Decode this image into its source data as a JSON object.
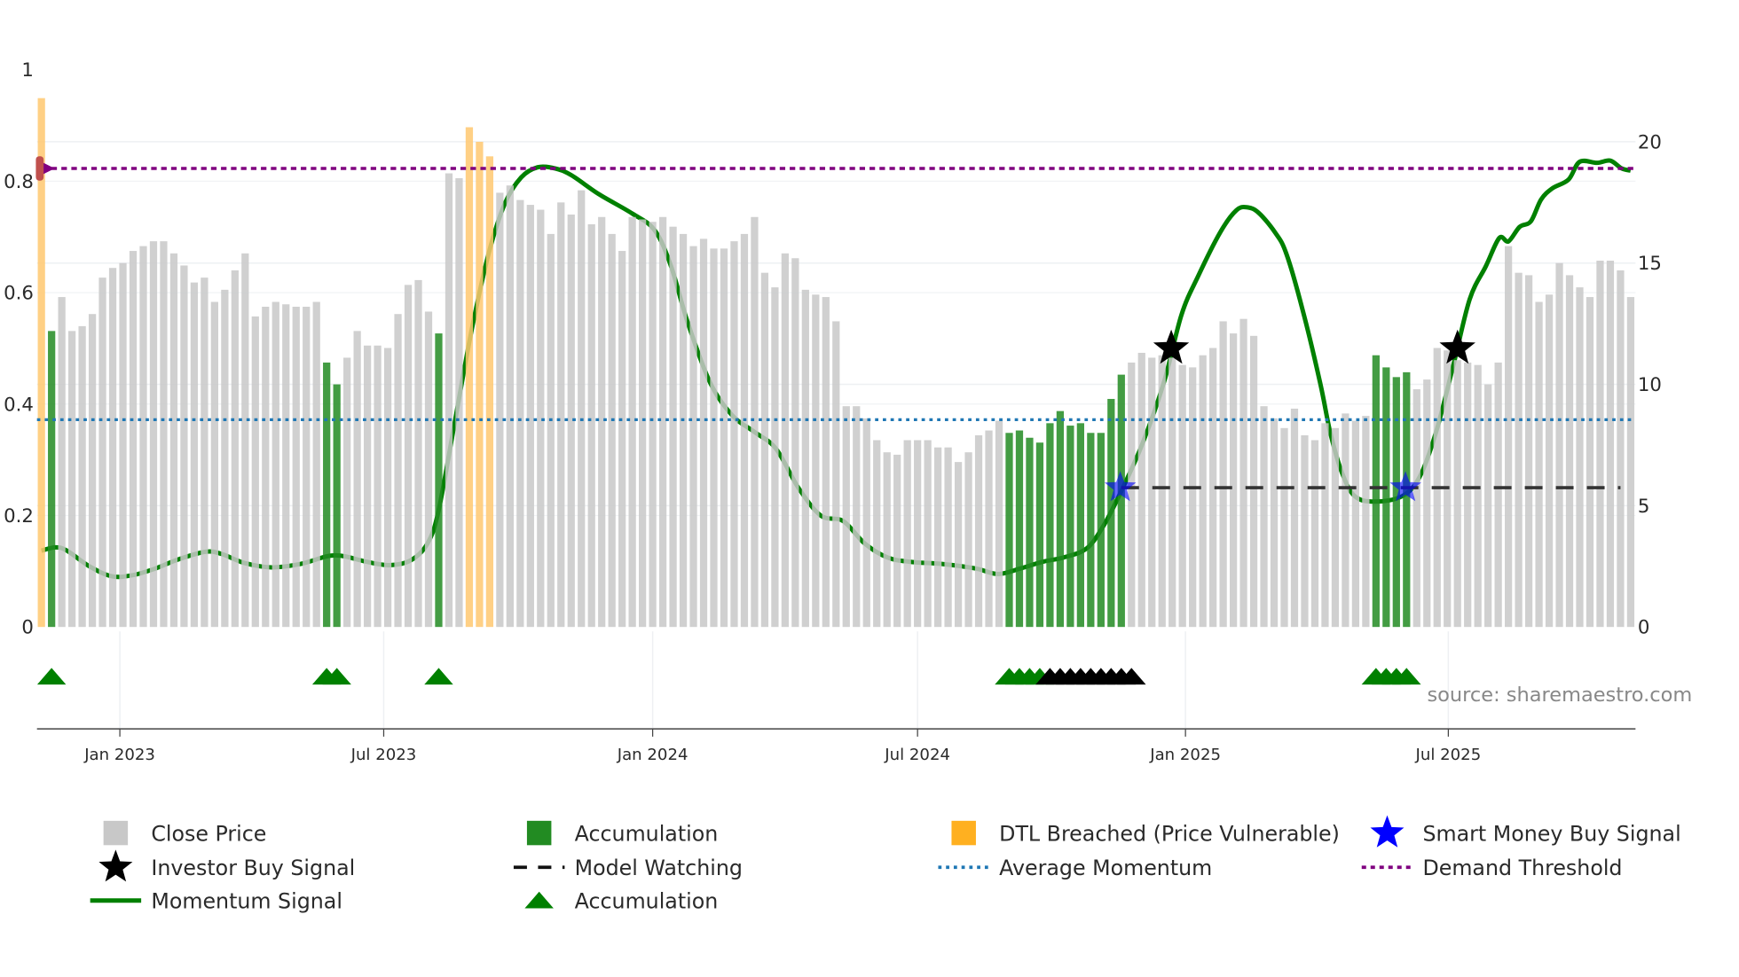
{
  "chart_data": {
    "type": "bar+line",
    "x_unit": "week index",
    "left_axis": {
      "ylim": [
        0,
        1
      ],
      "ticks": [
        "0",
        "0.2",
        "0.4",
        "0.6",
        "0.8",
        "1"
      ],
      "tick_values": [
        0,
        0.2,
        0.4,
        0.6,
        0.8,
        1
      ]
    },
    "right_axis": {
      "ylim": [
        0,
        20
      ],
      "ticks": [
        "0",
        "5",
        "10",
        "15",
        "20"
      ],
      "tick_values": [
        0,
        5,
        10,
        15,
        20
      ]
    },
    "x_ticks": [
      {
        "label": "Jan 2023",
        "week": 7.7
      },
      {
        "label": "Jul 2023",
        "week": 33.6
      },
      {
        "label": "Jan 2024",
        "week": 60.0
      },
      {
        "label": "Jul 2024",
        "week": 86.0
      },
      {
        "label": "Jan 2025",
        "week": 112.3
      },
      {
        "label": "Jul 2025",
        "week": 138.1
      }
    ],
    "close_price": [
      21.8,
      12.2,
      13.6,
      12.2,
      12.4,
      12.9,
      14.4,
      14.8,
      15.0,
      15.5,
      15.7,
      15.9,
      15.9,
      15.4,
      14.9,
      14.2,
      14.4,
      13.4,
      13.9,
      14.7,
      15.4,
      12.8,
      13.2,
      13.4,
      13.3,
      13.2,
      13.2,
      13.4,
      10.9,
      10.0,
      11.1,
      12.2,
      11.6,
      11.6,
      11.5,
      12.9,
      14.1,
      14.3,
      13.0,
      12.1,
      18.7,
      18.5,
      20.6,
      20.0,
      19.4,
      17.9,
      18.2,
      17.6,
      17.4,
      17.2,
      16.2,
      17.5,
      17.0,
      18.0,
      16.6,
      16.9,
      16.2,
      15.5,
      16.9,
      16.8,
      16.7,
      16.9,
      16.5,
      16.2,
      15.7,
      16.0,
      15.6,
      15.6,
      15.9,
      16.2,
      16.9,
      14.6,
      14.0,
      15.4,
      15.2,
      13.9,
      13.7,
      13.6,
      12.6,
      9.1,
      9.1,
      8.6,
      7.7,
      7.2,
      7.1,
      7.7,
      7.7,
      7.7,
      7.4,
      7.4,
      6.8,
      7.2,
      7.9,
      8.1,
      8.5,
      8.0,
      8.1,
      7.8,
      7.6,
      8.4,
      8.9,
      8.3,
      8.4,
      8.0,
      8.0,
      9.4,
      10.4,
      10.9,
      11.3,
      11.1,
      11.2,
      11.1,
      10.8,
      10.7,
      11.2,
      11.5,
      12.6,
      12.1,
      12.7,
      12.0,
      9.1,
      8.6,
      8.2,
      9.0,
      7.9,
      7.7,
      8.4,
      8.2,
      8.8,
      8.5,
      8.7,
      11.2,
      10.7,
      10.3,
      10.5,
      9.8,
      10.2,
      11.5,
      11.4,
      11.0,
      10.9,
      10.8,
      10.0,
      10.9,
      15.7,
      14.6,
      14.5,
      13.4,
      13.7,
      15.0,
      14.5,
      14.0,
      13.6,
      15.1,
      15.1,
      14.7,
      13.6
    ],
    "accumulation_weeks": [
      1,
      28,
      29,
      39,
      95,
      96,
      97,
      98,
      99,
      100,
      101,
      102,
      103,
      104,
      105,
      106,
      131,
      132,
      133,
      134
    ],
    "dtl_breached_weeks": [
      0,
      42,
      43,
      44
    ],
    "momentum_signal": [
      [
        0,
        0.137
      ],
      [
        1.4,
        0.143
      ],
      [
        2.5,
        0.137
      ],
      [
        4.7,
        0.109
      ],
      [
        6.9,
        0.091
      ],
      [
        9.0,
        0.093
      ],
      [
        11.2,
        0.105
      ],
      [
        13.4,
        0.121
      ],
      [
        16.1,
        0.135
      ],
      [
        17.7,
        0.131
      ],
      [
        19.9,
        0.115
      ],
      [
        22.6,
        0.107
      ],
      [
        25.4,
        0.113
      ],
      [
        28.1,
        0.127
      ],
      [
        29.7,
        0.127
      ],
      [
        31.9,
        0.117
      ],
      [
        34.1,
        0.111
      ],
      [
        36.2,
        0.119
      ],
      [
        37.9,
        0.15
      ],
      [
        39.0,
        0.21
      ],
      [
        40.6,
        0.37
      ],
      [
        42.2,
        0.53
      ],
      [
        43.9,
        0.67
      ],
      [
        45.5,
        0.76
      ],
      [
        47.1,
        0.807
      ],
      [
        48.7,
        0.825
      ],
      [
        50.4,
        0.823
      ],
      [
        52.0,
        0.811
      ],
      [
        54.7,
        0.777
      ],
      [
        58.0,
        0.742
      ],
      [
        60.2,
        0.712
      ],
      [
        61.8,
        0.648
      ],
      [
        63.4,
        0.549
      ],
      [
        65.6,
        0.44
      ],
      [
        67.8,
        0.38
      ],
      [
        70.0,
        0.35
      ],
      [
        72.1,
        0.32
      ],
      [
        74.3,
        0.25
      ],
      [
        76.5,
        0.2
      ],
      [
        78.7,
        0.19
      ],
      [
        80.8,
        0.15
      ],
      [
        83.0,
        0.125
      ],
      [
        85.2,
        0.117
      ],
      [
        88.5,
        0.113
      ],
      [
        91.7,
        0.105
      ],
      [
        93.9,
        0.095
      ],
      [
        96.1,
        0.105
      ],
      [
        98.3,
        0.117
      ],
      [
        100.4,
        0.125
      ],
      [
        102.6,
        0.141
      ],
      [
        104.2,
        0.18
      ],
      [
        105.9,
        0.24
      ],
      [
        108.1,
        0.33
      ],
      [
        110.2,
        0.44
      ],
      [
        111.9,
        0.56
      ],
      [
        113.5,
        0.628
      ],
      [
        115.7,
        0.708
      ],
      [
        117.3,
        0.748
      ],
      [
        118.4,
        0.753
      ],
      [
        119.5,
        0.743
      ],
      [
        121.1,
        0.708
      ],
      [
        122.2,
        0.67
      ],
      [
        123.8,
        0.569
      ],
      [
        125.5,
        0.44
      ],
      [
        126.5,
        0.35
      ],
      [
        127.6,
        0.28
      ],
      [
        128.9,
        0.235
      ],
      [
        130.9,
        0.225
      ],
      [
        133.6,
        0.235
      ],
      [
        135.3,
        0.27
      ],
      [
        136.9,
        0.35
      ],
      [
        138.6,
        0.47
      ],
      [
        140.2,
        0.588
      ],
      [
        141.8,
        0.648
      ],
      [
        143.1,
        0.698
      ],
      [
        144.0,
        0.692
      ],
      [
        145.1,
        0.718
      ],
      [
        146.2,
        0.728
      ],
      [
        147.2,
        0.767
      ],
      [
        148.3,
        0.787
      ],
      [
        149.9,
        0.803
      ],
      [
        151.0,
        0.835
      ],
      [
        152.7,
        0.833
      ],
      [
        154.0,
        0.837
      ],
      [
        155.1,
        0.823
      ],
      [
        156.0,
        0.819
      ]
    ],
    "average_momentum": 0.372,
    "demand_threshold": 0.823,
    "model_watching": {
      "value": 0.25,
      "from_week": 106,
      "to_week": 155
    },
    "investor_buy_signals": [
      [
        110.9,
        0.5
      ],
      [
        139.0,
        0.5
      ]
    ],
    "smart_money_buy_signals": [
      [
        105.9,
        0.25
      ],
      [
        133.9,
        0.25
      ]
    ],
    "accumulation_triangles": [
      1,
      28,
      29,
      39,
      95,
      96,
      97,
      98,
      131,
      132,
      133,
      134
    ],
    "watching_triangles": [
      99,
      100,
      101,
      102,
      103,
      104,
      105,
      106,
      107
    ],
    "colors": {
      "close": "#c8c8c8",
      "accumulation": "#228b22",
      "dtl": "#ffc870",
      "momentum": "#008000",
      "avg": "#1f77b4",
      "demand": "#800080",
      "investor": "#000000",
      "smart": "#0000ff"
    },
    "legend": [
      {
        "label": "Close Price",
        "symbol": "gray-square"
      },
      {
        "label": "Accumulation",
        "symbol": "green-square"
      },
      {
        "label": "DTL Breached (Price Vulnerable)",
        "symbol": "orange-square"
      },
      {
        "label": "Smart Money Buy Signal",
        "symbol": "blue-star"
      },
      {
        "label": "Investor Buy Signal",
        "symbol": "black-star"
      },
      {
        "label": "Model Watching",
        "symbol": "black-dash"
      },
      {
        "label": "Average Momentum",
        "symbol": "blue-dotted"
      },
      {
        "label": "Demand Threshold",
        "symbol": "purple-dotted"
      },
      {
        "label": "Momentum Signal",
        "symbol": "green-line"
      },
      {
        "label": "Accumulation",
        "symbol": "green-triangle"
      }
    ],
    "legend_position": "bottom",
    "source": "source: sharemaestro.com"
  }
}
